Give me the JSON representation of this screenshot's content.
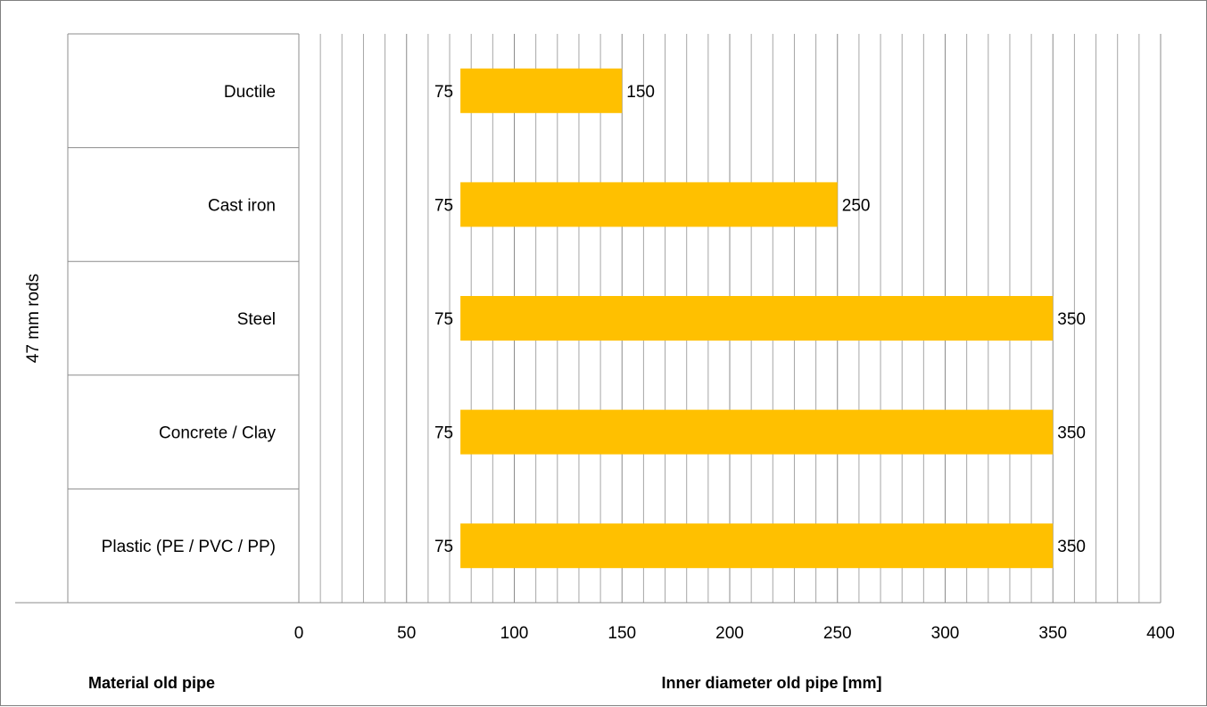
{
  "chart_data": {
    "type": "bar",
    "orientation": "horizontal",
    "stacked_range": true,
    "group_label": "47 mm rods",
    "categories": [
      "Ductile",
      "Cast iron",
      "Steel",
      "Concrete / Clay",
      "Plastic (PE / PVC / PP)"
    ],
    "series": [
      {
        "values_min": [
          75,
          75,
          75,
          75,
          75
        ],
        "values_max": [
          150,
          250,
          350,
          350,
          350
        ]
      }
    ],
    "xlabel": "Inner diameter old pipe [mm]",
    "ylabel": "Material old pipe",
    "xlim": [
      0,
      400
    ],
    "x_ticks": [
      "0",
      "50",
      "100",
      "150",
      "200",
      "250",
      "300",
      "350",
      "400"
    ],
    "x_minor_step": 10,
    "grid": true,
    "bar_color": "#FFC000",
    "grid_color": "#a6a6a6"
  }
}
